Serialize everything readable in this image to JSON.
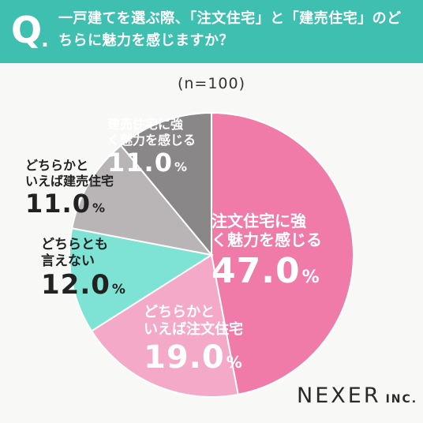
{
  "header": {
    "q_letter": "Q",
    "q_dot": ".",
    "question": "一戸建てを選ぶ際、「注文住宅」と「建売住宅」のどちらに魅力を感じますか？"
  },
  "sample_label": "(n=100)",
  "brand": {
    "main": "NEXER",
    "sub": "INC."
  },
  "chart_data": {
    "type": "pie",
    "start": "12 o'clock",
    "direction": "clockwise",
    "slices": [
      {
        "label": "注文住宅に強く魅力を感じる",
        "value": 47.0,
        "display": "47.0",
        "unit": "%",
        "color": "#f07aa8",
        "label_color": "#ffffff"
      },
      {
        "label": "どちらかといえば注文住宅",
        "value": 19.0,
        "display": "19.0",
        "unit": "%",
        "color": "#f5a9c9",
        "label_color": "#ffffff"
      },
      {
        "label": "どちらとも言えない",
        "value": 12.0,
        "display": "12.0",
        "unit": "%",
        "color": "#7ee3d4",
        "label_color": "#222222"
      },
      {
        "label": "どちらかといえば建売住宅",
        "value": 11.0,
        "display": "11.0",
        "unit": "%",
        "color": "#b9b5b7",
        "label_color": "#222222"
      },
      {
        "label": "建売住宅に強く魅力を感じる",
        "value": 11.0,
        "display": "11.0",
        "unit": "%",
        "color": "#8a8788",
        "label_color": "#ffffff"
      }
    ]
  }
}
